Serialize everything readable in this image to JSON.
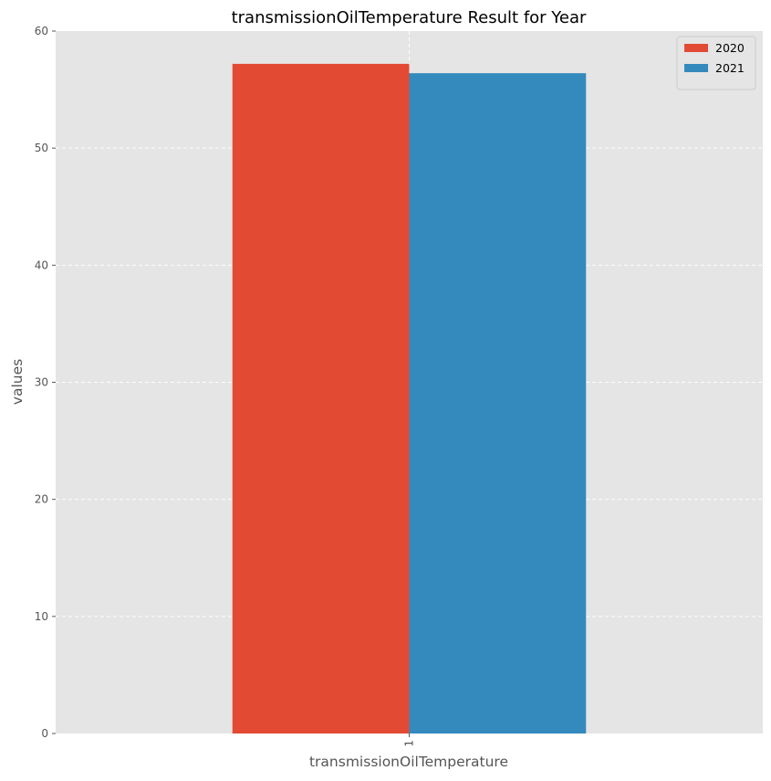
{
  "chart_data": {
    "type": "bar",
    "title": "transmissionOilTemperature Result for Year",
    "xlabel": "transmissionOilTemperature",
    "ylabel": "values",
    "categories": [
      "1"
    ],
    "series": [
      {
        "name": "2020",
        "values": [
          57.2
        ],
        "color": "#E24A33"
      },
      {
        "name": "2021",
        "values": [
          56.4
        ],
        "color": "#348ABD"
      }
    ],
    "ylim": [
      0,
      60
    ],
    "yticks": [
      0,
      10,
      20,
      30,
      40,
      50,
      60
    ],
    "grid": true,
    "legend_position": "top-right",
    "background_color": "#E5E5E5",
    "grid_color": "#FFFFFF"
  }
}
